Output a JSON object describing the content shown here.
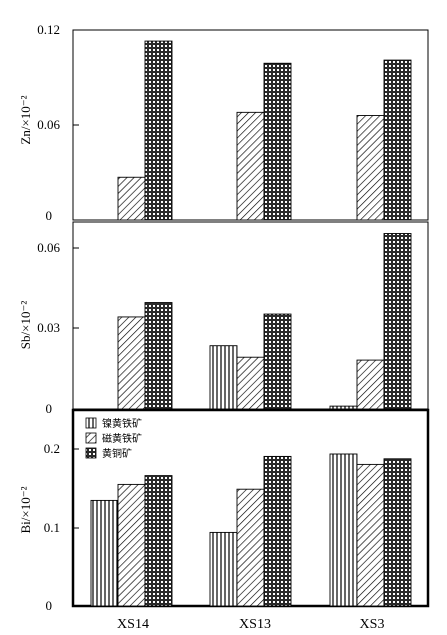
{
  "chart_data": [
    {
      "type": "bar",
      "ylabel": "Zn/×10⁻²",
      "ylim": [
        0,
        0.12
      ],
      "yticks": [
        "0",
        "0.06",
        "0.12"
      ],
      "categories": [
        "XS14",
        "XS13",
        "XS3"
      ],
      "series": [
        {
          "name": "磁黄铁矿",
          "values": [
            0.027,
            0.068,
            0.066
          ]
        },
        {
          "name": "黄铜矿",
          "values": [
            0.113,
            0.099,
            0.101
          ]
        }
      ]
    },
    {
      "type": "bar",
      "ylabel": "Sb/×10⁻²",
      "ylim": [
        0,
        0.065
      ],
      "yticks": [
        "0",
        "0.03",
        "0.06"
      ],
      "categories": [
        "XS14",
        "XS13",
        "XS3"
      ],
      "series": [
        {
          "name": "镍黄铁矿",
          "values": [
            null,
            0.022,
            0.001
          ]
        },
        {
          "name": "磁黄铁矿",
          "values": [
            0.032,
            0.018,
            0.017
          ]
        },
        {
          "name": "黄铜矿",
          "values": [
            0.037,
            0.033,
            0.061
          ]
        }
      ]
    },
    {
      "type": "bar",
      "ylabel": "Bi/×10⁻²",
      "ylim": [
        0,
        0.245
      ],
      "yticks": [
        "0",
        "0.1",
        "0.2"
      ],
      "categories": [
        "XS14",
        "XS13",
        "XS3"
      ],
      "legend_position": "top-left",
      "series": [
        {
          "name": "镍黄铁矿",
          "values": [
            0.132,
            0.092,
            0.19
          ]
        },
        {
          "name": "磁黄铁矿",
          "values": [
            0.152,
            0.146,
            0.177
          ]
        },
        {
          "name": "黄铜矿",
          "values": [
            0.163,
            0.187,
            0.184
          ]
        }
      ]
    }
  ],
  "legend": [
    "镍黄铁矿",
    "磁黄铁矿",
    "黄铜矿"
  ],
  "category_labels": [
    "XS14",
    "XS13",
    "XS3"
  ],
  "colors": {
    "axis": "#000000",
    "fill": "#ffffff"
  }
}
